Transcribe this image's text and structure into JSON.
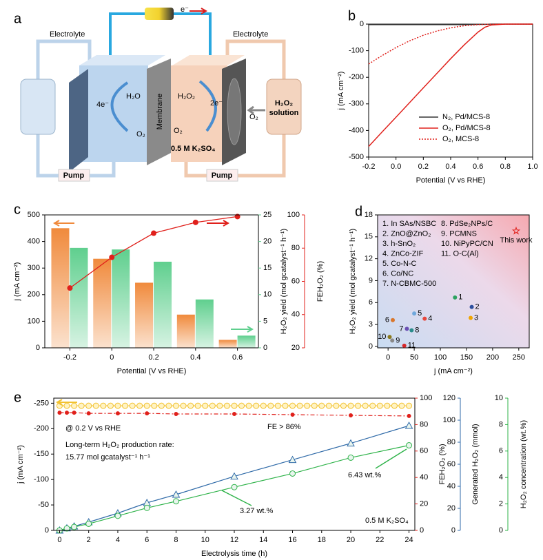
{
  "diagram": {
    "panel": "a",
    "electrolyte_left": "Electrolyte",
    "electrolyte_right": "Electrolyte",
    "electron": "e⁻",
    "h2o": "H₂O",
    "o2_left": "O₂",
    "electrons_left": "4e⁻",
    "membrane": "Membrane",
    "h2o2": "H₂O₂",
    "electrons_right": "2e⁻",
    "o2_right": "O₂",
    "o2_feed": "O₂",
    "electrolyte_salt": "0.5 M K₂SO₄",
    "solution_line1": "H₂O₂",
    "solution_line2": "solution",
    "pump_left": "Pump",
    "pump_right": "Pump"
  },
  "chart_data": [
    {
      "type": "line",
      "panel": "b",
      "xlabel": "Potential (V vs RHE)",
      "ylabel": "j (mA cm⁻²)",
      "x": [
        -0.2,
        -0.1,
        0,
        0.1,
        0.2,
        0.3,
        0.4,
        0.5,
        0.6,
        0.65,
        0.7,
        0.8,
        0.9,
        1.0
      ],
      "xlim": [
        -0.2,
        1.0
      ],
      "xticks": [
        -0.2,
        {
          "value": 0,
          "label": "0.0"
        },
        0.2,
        0.4,
        0.6,
        0.8,
        {
          "value": 1,
          "label": "1.0"
        }
      ],
      "ylim": [
        -500,
        0
      ],
      "yticks": [
        -500,
        -400,
        -300,
        -200,
        -100,
        0
      ],
      "legend": "lower right",
      "series": [
        {
          "name": "N₂, Pd/MCS-8",
          "color": "#333333",
          "values": [
            -2,
            -2,
            -2,
            -2,
            -2,
            -2,
            -2,
            -2,
            -1,
            -1,
            0,
            0,
            0,
            0
          ]
        },
        {
          "name": "O₂, Pd/MCS-8",
          "color": "#e0201b",
          "values": [
            -460,
            -405,
            -350,
            -295,
            -240,
            -185,
            -130,
            -78,
            -30,
            -12,
            -3,
            0,
            0,
            0
          ]
        },
        {
          "name": "O₂, MCS-8",
          "color": "#e0201b",
          "dash": true,
          "values": [
            -150,
            -118,
            -88,
            -63,
            -42,
            -26,
            -14,
            -6,
            -2,
            -1,
            0,
            0,
            0,
            0
          ]
        }
      ]
    },
    {
      "type": "bar",
      "panel": "c",
      "xlabel": "Potential (V vs RHE)",
      "ylabel": "j (mA cm⁻²)",
      "y2label": "H₂O₂ yield (mol gcatalyst⁻¹ h⁻¹)",
      "y3label": "FEH₂O₂ (%)",
      "x": [
        -0.2,
        0,
        0.2,
        0.4,
        0.6
      ],
      "xlim": [
        -0.32,
        0.7
      ],
      "xticks": [
        -0.2,
        0,
        0.2,
        0.4,
        0.6
      ],
      "ylim": [
        0,
        500
      ],
      "yticks": [
        0,
        100,
        200,
        300,
        400,
        500
      ],
      "y2lim": [
        0,
        25
      ],
      "y2ticks": [
        0,
        5,
        10,
        15,
        20,
        25
      ],
      "y3lim": [
        20,
        100
      ],
      "y3ticks": [
        20,
        40,
        60,
        80,
        100
      ],
      "series": [
        {
          "color": "#f08a3c",
          "values": [
            450,
            335,
            245,
            125,
            30
          ]
        },
        {
          "color": "#5fcf8e",
          "axis": "y2",
          "values": [
            18.8,
            18.5,
            16.2,
            9.1,
            2.3
          ]
        },
        {
          "color": "#e0201b",
          "axis": "y3",
          "values": [
            56,
            74.5,
            89,
            95.5,
            99
          ]
        }
      ]
    },
    {
      "type": "scatter",
      "panel": "d",
      "xlabel": "j (mA cm⁻²)",
      "ylabel": "H₂O₂ yield (mol gcatalyst⁻¹ h⁻¹)",
      "xlim": [
        -20,
        270
      ],
      "xticks": [
        0,
        50,
        100,
        150,
        200,
        250
      ],
      "ylim": [
        -0.2,
        18
      ],
      "yticks": [
        0,
        3,
        6,
        9,
        12,
        15,
        18
      ],
      "labels": [
        "1",
        "2",
        "3",
        "4",
        "5",
        "6",
        "7",
        "8",
        "9",
        "10",
        "11",
        "This work"
      ],
      "x": [
        128,
        160,
        158,
        70,
        50,
        9,
        36,
        45,
        8,
        3,
        31,
        245
      ],
      "values": [
        6.7,
        5.4,
        3.9,
        3.8,
        4.5,
        3.6,
        2.4,
        2.2,
        0.8,
        1.3,
        0.1,
        15.8
      ],
      "colors": [
        "#2ca25f",
        "#2c4f9e",
        "#f0a500",
        "#e8463b",
        "#6fa8dc",
        "#d9762b",
        "#6a4fb3",
        "#2a8c8c",
        "#888888",
        "#8a7a1e",
        "#d62728",
        "#e0201b"
      ],
      "legend": [
        "1. In SAs/NSBC",
        "2. ZnO@ZnO₂",
        "3. h-SnO₂",
        "4. ZnCo-ZIF",
        "5. Co-N-C",
        "6. Co/NC",
        "7. N-CBMC-500",
        "8. PdSe₂NPs/C",
        "9. PCMNS",
        "10. NiPyPC/CN",
        "11. O-C(Al)"
      ]
    },
    {
      "type": "line",
      "panel": "e",
      "xlabel": "Electrolysis time (h)",
      "ylabel": "j (mA cm⁻²)",
      "y2label": "FEH₂O₂ (%)",
      "y3label": "Generated H₂O₂ (mmol)",
      "y4label": "H₂O₂ concentration (wt.%)",
      "xlim": [
        -0.4,
        24.4
      ],
      "xticks": [
        0,
        2,
        4,
        6,
        8,
        10,
        12,
        14,
        16,
        18,
        20,
        22,
        24
      ],
      "ylim": [
        0,
        -260
      ],
      "yticks": [
        0,
        -50,
        -100,
        -150,
        -200,
        -250
      ],
      "y2lim": [
        0,
        100
      ],
      "y2ticks": [
        0,
        20,
        40,
        60,
        80,
        100
      ],
      "y3lim": [
        0,
        120
      ],
      "y3ticks": [
        0,
        20,
        40,
        60,
        80,
        100,
        120
      ],
      "y4lim": [
        0,
        10
      ],
      "y4ticks": [
        0,
        2,
        4,
        6,
        8,
        10
      ],
      "series": [
        {
          "color": "#f2c230",
          "marker": "circle",
          "x": [
            0,
            0.5,
            1,
            1.5,
            2,
            2.5,
            3,
            3.5,
            4,
            4.5,
            5,
            5.5,
            6,
            6.5,
            7,
            7.5,
            8,
            8.5,
            9,
            9.5,
            10,
            10.5,
            11,
            11.5,
            12,
            12.5,
            13,
            13.5,
            14,
            14.5,
            15,
            15.5,
            16,
            16.5,
            17,
            17.5,
            18,
            18.5,
            19,
            19.5,
            20,
            20.5,
            21,
            21.5,
            22,
            22.5,
            23,
            23.5,
            24
          ],
          "values": [
            -245,
            -245,
            -245,
            -245,
            -245,
            -245,
            -245,
            -245,
            -245,
            -245,
            -245,
            -245,
            -245,
            -245,
            -245,
            -245,
            -245,
            -245,
            -245,
            -245,
            -245,
            -245,
            -245,
            -245,
            -245,
            -245,
            -245,
            -245,
            -245,
            -245,
            -245,
            -245,
            -245,
            -245,
            -245,
            -245,
            -245,
            -245,
            -245,
            -245,
            -245,
            -245,
            -245,
            -245,
            -245,
            -245,
            -245,
            -245,
            -245
          ]
        },
        {
          "color": "#e0201b",
          "axis": "y2",
          "marker": "dot",
          "dash": true,
          "x": [
            0,
            0.5,
            1,
            2,
            4,
            6,
            8,
            12,
            16,
            20,
            24
          ],
          "values": [
            89,
            89,
            89,
            88.5,
            88.5,
            88.5,
            88,
            88,
            87.5,
            87,
            86.5
          ]
        },
        {
          "color": "#2f6aa8",
          "axis": "y3",
          "marker": "triangle",
          "x": [
            0,
            0.5,
            1,
            2,
            4,
            6,
            8,
            12,
            16,
            20,
            24
          ],
          "values": [
            0,
            2,
            3.7,
            7.5,
            15.6,
            25,
            32.5,
            49,
            64,
            79,
            95
          ]
        },
        {
          "color": "#2fb34a",
          "axis": "y4",
          "marker": "circle",
          "x": [
            0,
            0.5,
            1,
            2,
            4,
            6,
            8,
            12,
            16,
            20,
            24
          ],
          "values": [
            0,
            0.15,
            0.26,
            0.5,
            1.1,
            1.7,
            2.2,
            3.27,
            4.3,
            5.5,
            6.43
          ]
        }
      ],
      "annotations": {
        "condition": "@ 0.2 V vs RHE",
        "rate_line1": "Long-term H₂O₂ production rate:",
        "rate_line2": "15.77 mol gcatalyst⁻¹ h⁻¹",
        "fe": "FE > 86%",
        "conc_12h": "3.27 wt.%",
        "conc_24h": "6.43 wt.%",
        "electrolyte": "0.5 M K₂SO₄"
      }
    }
  ]
}
